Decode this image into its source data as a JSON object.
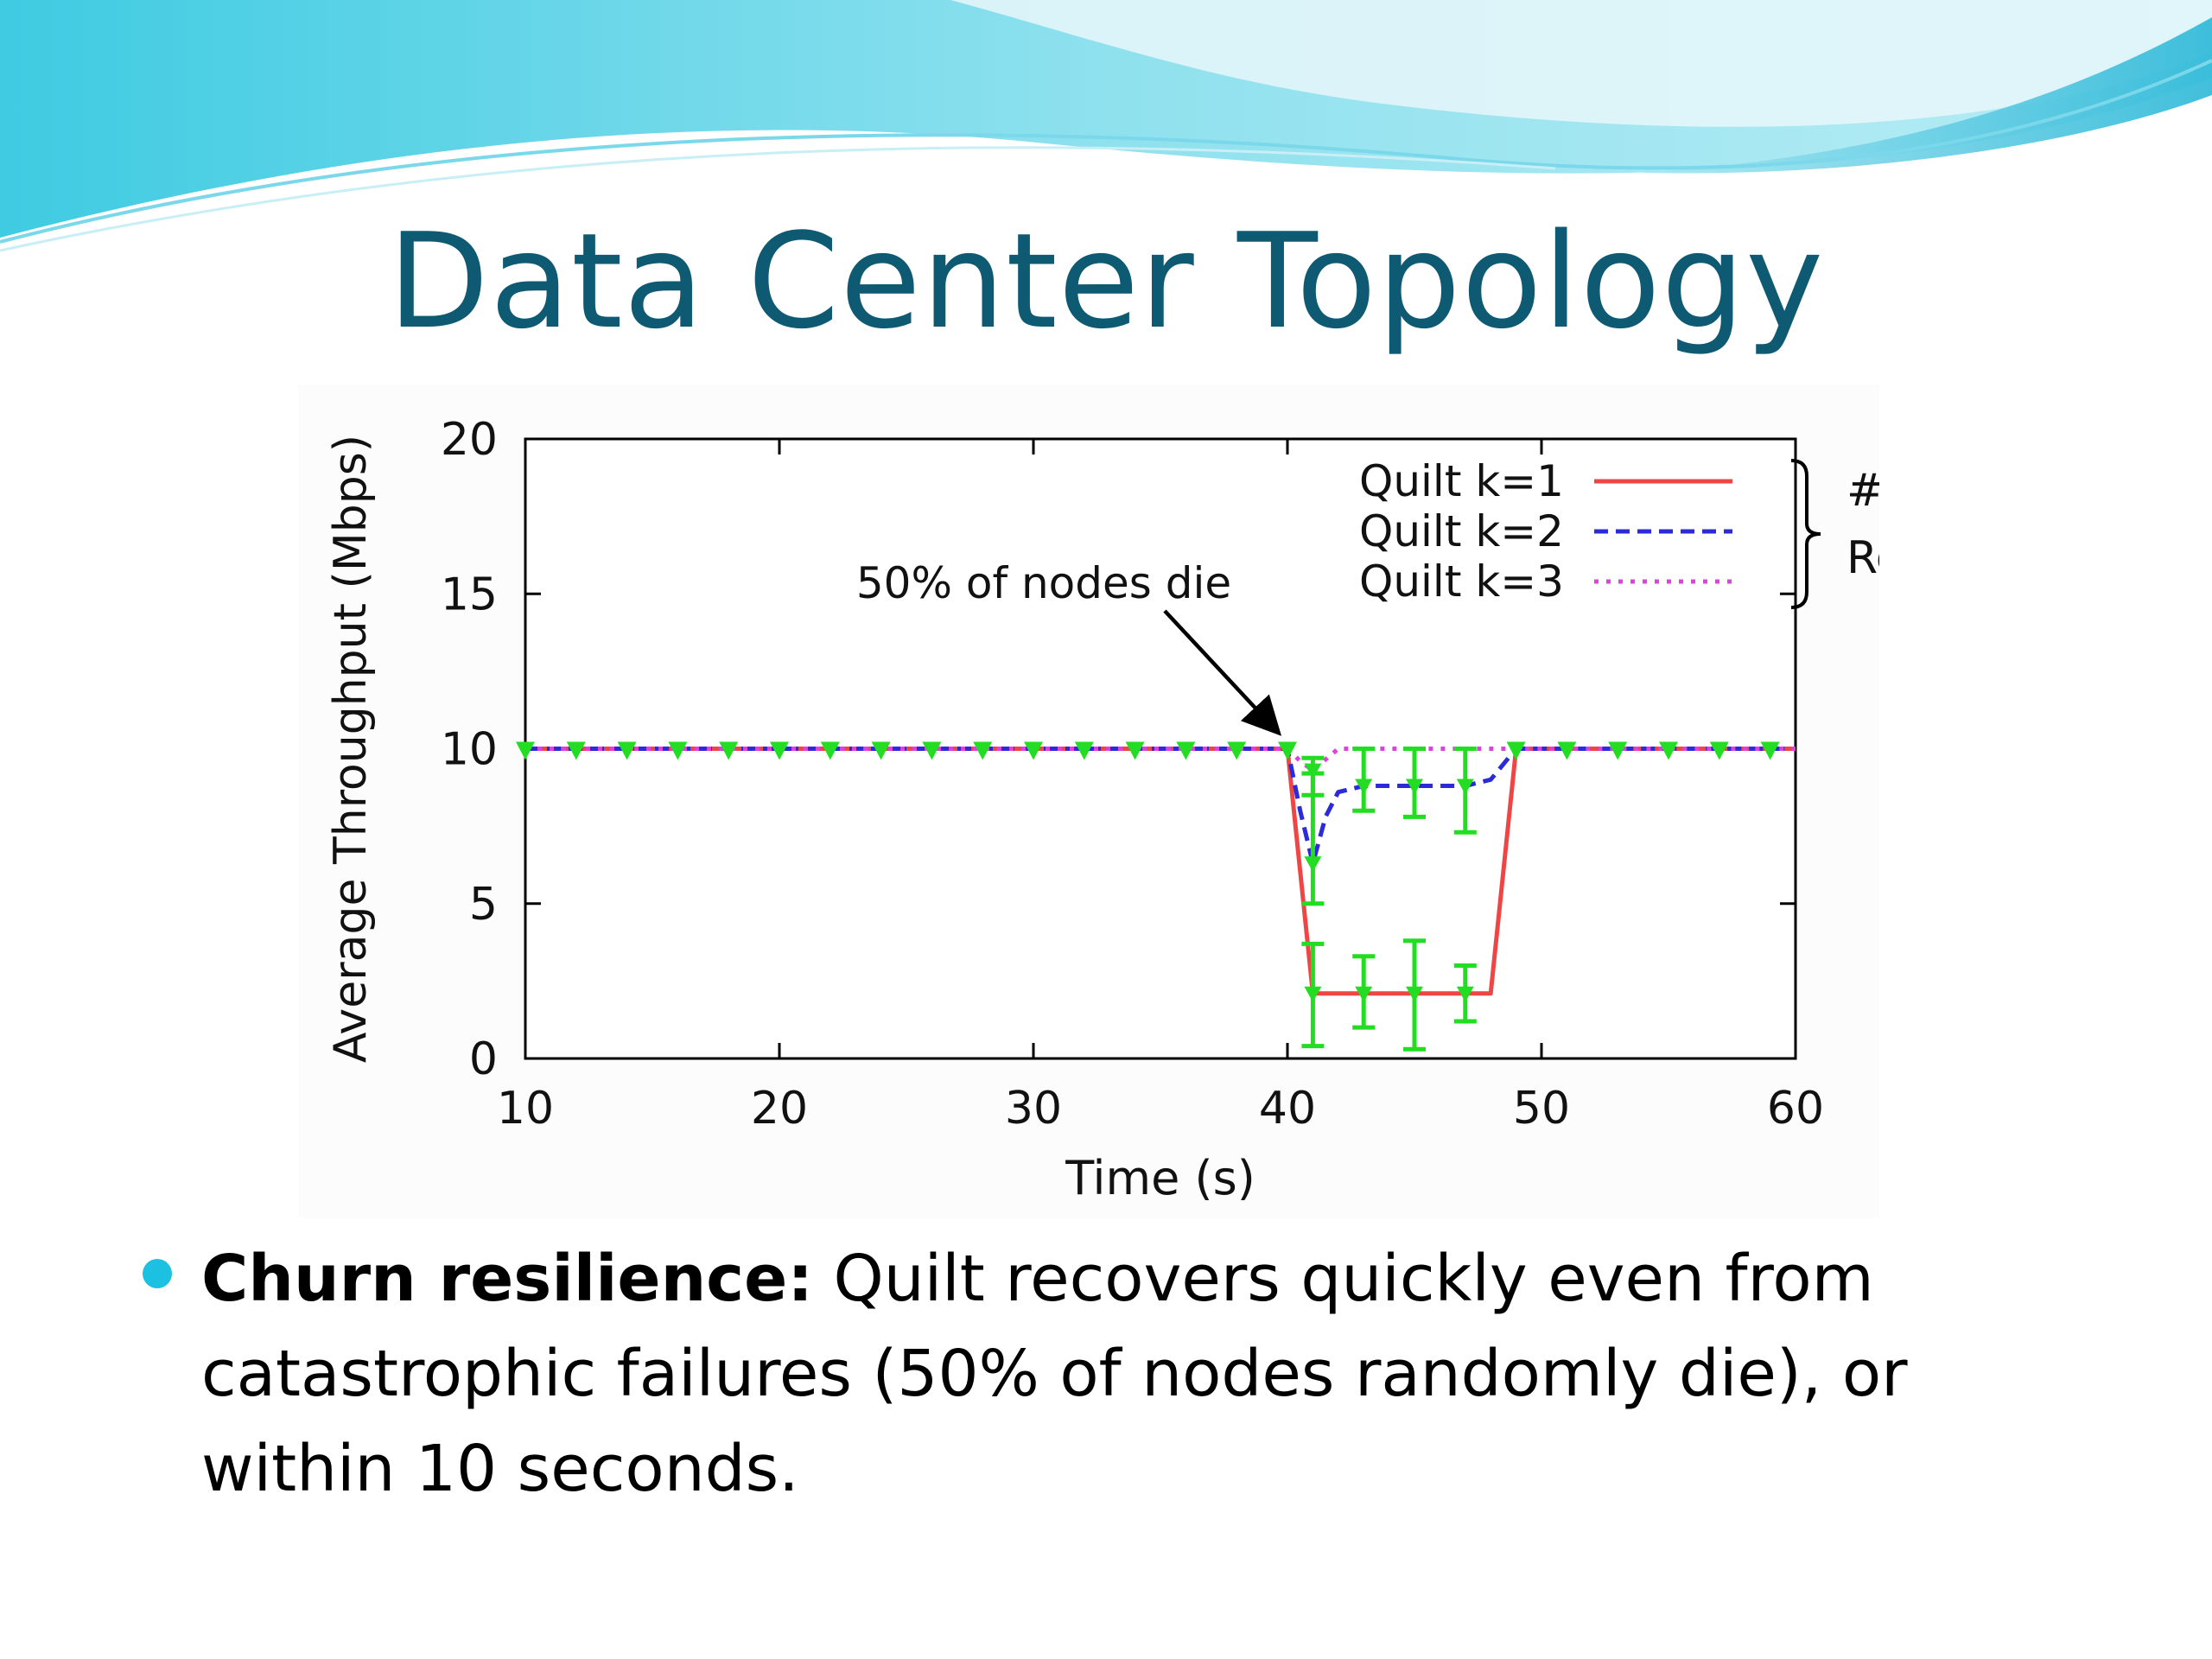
{
  "slide": {
    "title": "Data Center Topology",
    "bullet": {
      "bold": "Churn resilience:",
      "text": " Quilt recovers quickly even from catastrophic failures (50% of nodes randomly die), or within 10 seconds."
    },
    "colors": {
      "title": "#0f5a73",
      "bullet_dot": "#1cc1e2",
      "banner": "#5fd0e6"
    }
  },
  "chart_data": {
    "type": "line",
    "xlabel": "Time (s)",
    "ylabel": "Average Throughput (Mbps)",
    "xlim": [
      10,
      60
    ],
    "ylim": [
      0,
      20
    ],
    "xticks": [
      10,
      20,
      30,
      40,
      50,
      60
    ],
    "yticks": [
      0,
      5,
      10,
      15,
      20
    ],
    "legend_position": "top-right",
    "series": [
      {
        "name": "Quilt k=1",
        "color": "#ef4545",
        "dash": "solid",
        "x": [
          10,
          40,
          41,
          42,
          48,
          49,
          60
        ],
        "y": [
          10,
          10,
          2.1,
          2.1,
          2.1,
          10,
          10
        ]
      },
      {
        "name": "Quilt k=2",
        "color": "#2b2bd9",
        "dash": "dashed",
        "x": [
          10,
          40,
          40.5,
          41,
          41.5,
          42,
          43,
          47,
          48,
          49,
          60
        ],
        "y": [
          10,
          10,
          8.0,
          6.3,
          7.8,
          8.6,
          8.8,
          8.8,
          9.0,
          10,
          10
        ]
      },
      {
        "name": "Quilt k=3",
        "color": "#e040e0",
        "dash": "dotted",
        "x": [
          10,
          40,
          40.5,
          41,
          42,
          60
        ],
        "y": [
          10,
          10,
          9.6,
          9.3,
          10,
          10
        ]
      }
    ],
    "marker_series": {
      "color": "#22dd22",
      "x": [
        10,
        12,
        14,
        16,
        18,
        20,
        22,
        24,
        26,
        28,
        30,
        32,
        34,
        36,
        38,
        40,
        49,
        51,
        53,
        55,
        57,
        59
      ],
      "y": 10
    },
    "error_bars": [
      {
        "x": 41,
        "y": 2.1,
        "low": 0.4,
        "high": 3.7
      },
      {
        "x": 43,
        "y": 2.1,
        "low": 1.0,
        "high": 3.3
      },
      {
        "x": 45,
        "y": 2.1,
        "low": 0.3,
        "high": 3.8
      },
      {
        "x": 47,
        "y": 2.1,
        "low": 1.2,
        "high": 3.0
      },
      {
        "x": 41,
        "y": 6.3,
        "low": 5.0,
        "high": 9.2
      },
      {
        "x": 43,
        "y": 8.8,
        "low": 8.0,
        "high": 10.0
      },
      {
        "x": 45,
        "y": 8.8,
        "low": 7.8,
        "high": 10.0
      },
      {
        "x": 47,
        "y": 8.8,
        "low": 7.3,
        "high": 10.0
      },
      {
        "x": 41,
        "y": 9.3,
        "low": 8.5,
        "high": 9.7
      }
    ],
    "annotations": [
      {
        "text": "50% of nodes die",
        "points_to": {
          "x": 40,
          "y": 10
        }
      }
    ],
    "brace_label": [
      "# of Patch",
      "Representatives"
    ]
  }
}
